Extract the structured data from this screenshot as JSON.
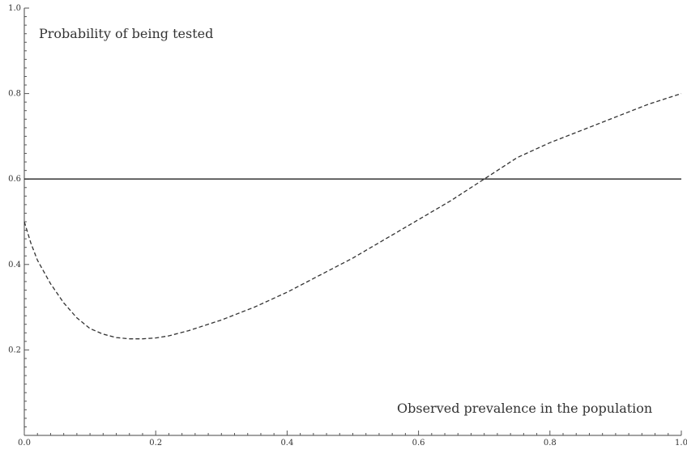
{
  "chart_data": {
    "type": "line",
    "title": "",
    "ylabel": "Probability of being tested",
    "xlabel": "Observed prevalence in the population",
    "xlim": [
      0,
      1
    ],
    "ylim": [
      0,
      1
    ],
    "x_ticks": [
      "0.0",
      "0.2",
      "0.4",
      "0.6",
      "0.8",
      "1.0"
    ],
    "y_ticks": [
      "0.2",
      "0.4",
      "0.6",
      "0.8",
      "1.0"
    ],
    "grid": false,
    "legend": "none",
    "series": [
      {
        "style": "solid",
        "color": "#222222",
        "x": [
          0.0,
          1.0
        ],
        "y": [
          0.6,
          0.6
        ]
      },
      {
        "style": "dashed",
        "color": "#333333",
        "x": [
          0.0,
          0.01,
          0.02,
          0.04,
          0.06,
          0.08,
          0.1,
          0.12,
          0.14,
          0.16,
          0.18,
          0.2,
          0.22,
          0.25,
          0.3,
          0.35,
          0.4,
          0.45,
          0.5,
          0.55,
          0.6,
          0.65,
          0.7,
          0.75,
          0.8,
          0.85,
          0.9,
          0.95,
          1.0
        ],
        "y": [
          0.5,
          0.45,
          0.41,
          0.355,
          0.31,
          0.275,
          0.25,
          0.237,
          0.229,
          0.226,
          0.226,
          0.228,
          0.233,
          0.245,
          0.27,
          0.3,
          0.335,
          0.375,
          0.415,
          0.46,
          0.505,
          0.55,
          0.6,
          0.65,
          0.685,
          0.715,
          0.745,
          0.775,
          0.8
        ]
      }
    ]
  }
}
